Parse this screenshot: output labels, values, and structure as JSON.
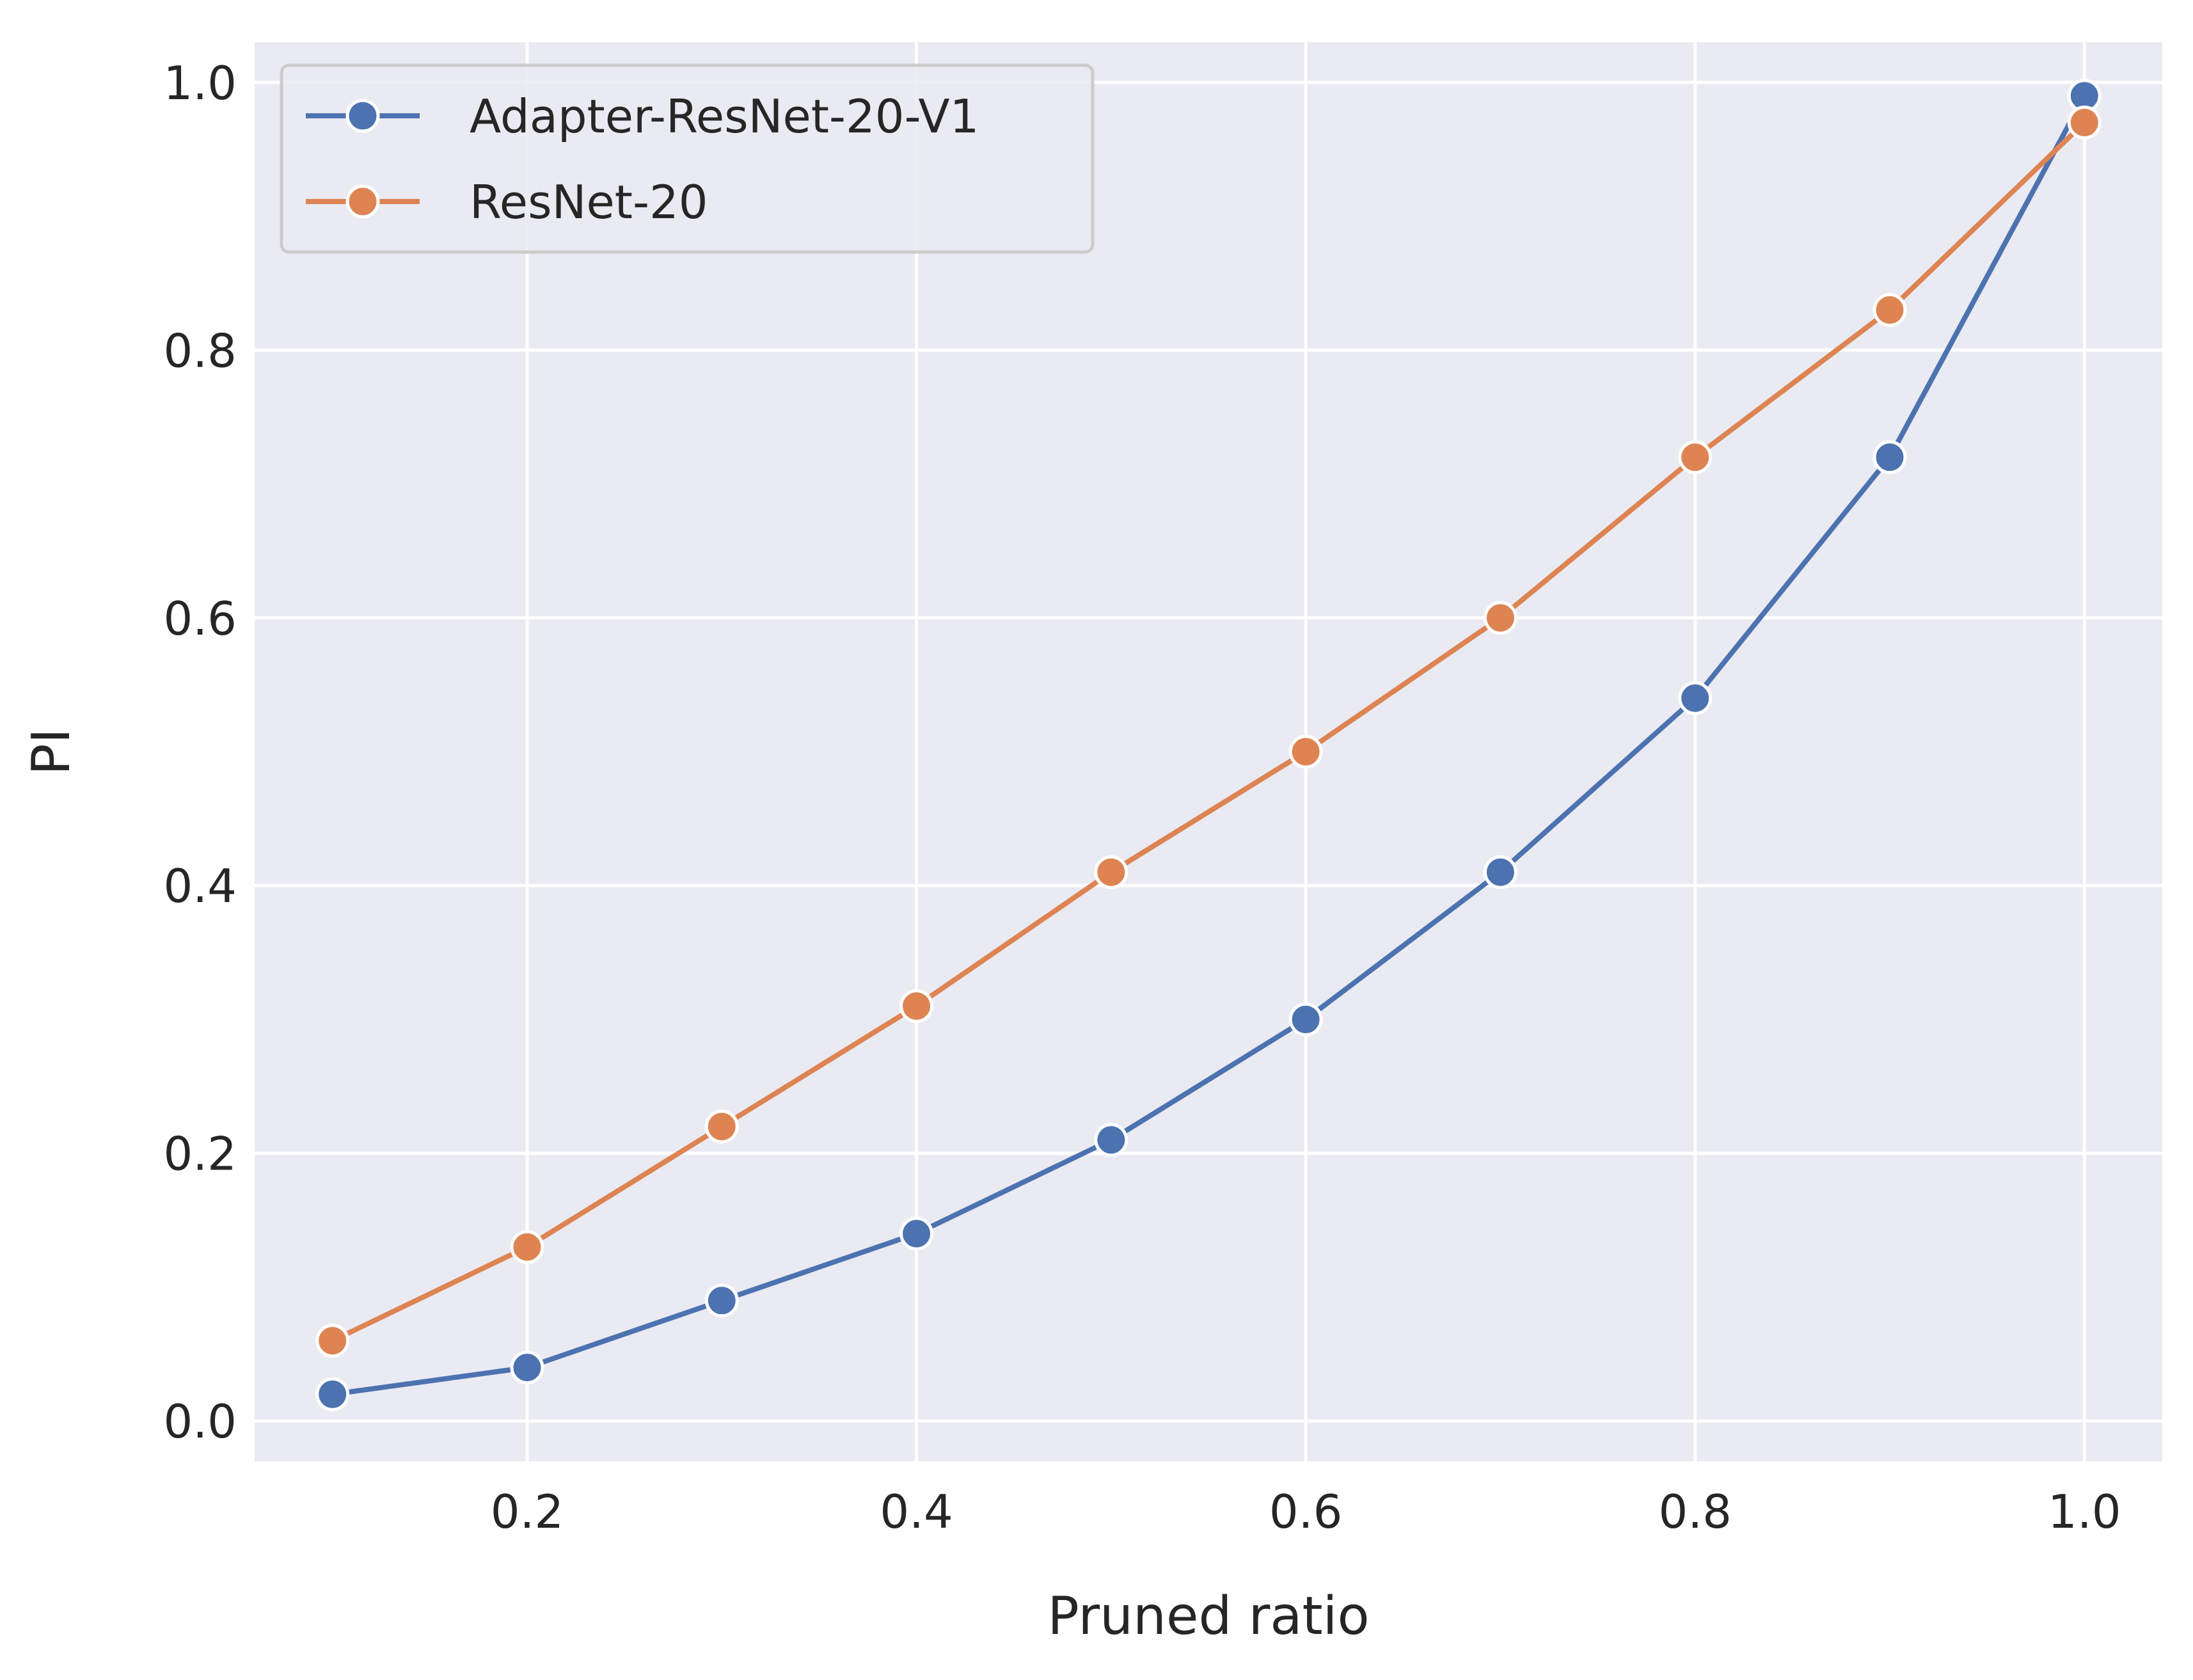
{
  "chart_data": {
    "type": "line",
    "title": "",
    "xlabel": "Pruned ratio",
    "ylabel": "PI",
    "xlim": [
      0.06,
      1.04
    ],
    "ylim": [
      -0.03,
      1.03
    ],
    "xticks": [
      0.2,
      0.4,
      0.6,
      0.8,
      1.0
    ],
    "xtick_labels": [
      "0.2",
      "0.4",
      "0.6",
      "0.8",
      "1.0"
    ],
    "yticks": [
      0.0,
      0.2,
      0.4,
      0.6,
      0.8,
      1.0
    ],
    "ytick_labels": [
      "0.0",
      "0.2",
      "0.4",
      "0.6",
      "0.8",
      "1.0"
    ],
    "grid": true,
    "background": "#EAEAF2",
    "legend_position": "top-left",
    "x": [
      0.1,
      0.2,
      0.3,
      0.4,
      0.5,
      0.6,
      0.7,
      0.8,
      0.9,
      1.0
    ],
    "series": [
      {
        "name": "Adapter-ResNet-20-V1",
        "color": "#4C72B0",
        "marker": "circle",
        "values": [
          0.02,
          0.04,
          0.09,
          0.14,
          0.21,
          0.3,
          0.41,
          0.54,
          0.72,
          0.99
        ]
      },
      {
        "name": "ResNet-20",
        "color": "#DD8452",
        "marker": "circle",
        "values": [
          0.06,
          0.13,
          0.22,
          0.31,
          0.41,
          0.5,
          0.6,
          0.72,
          0.83,
          0.97
        ]
      }
    ]
  }
}
